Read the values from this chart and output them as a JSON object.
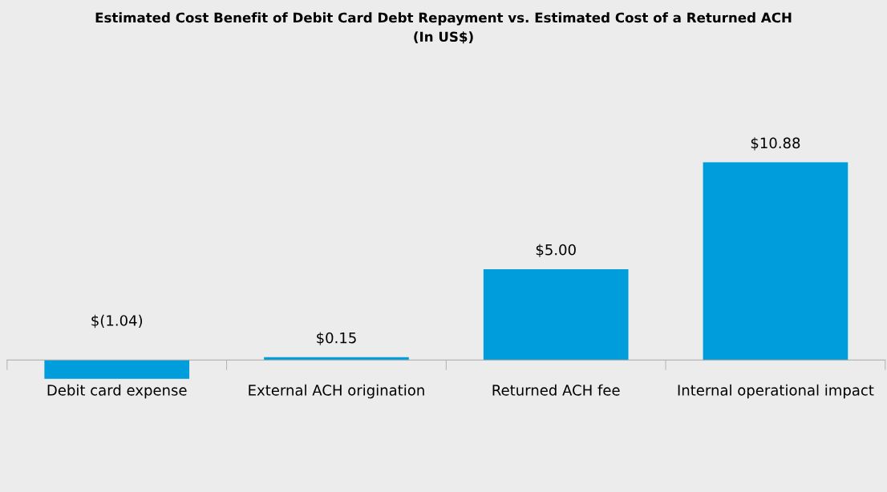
{
  "chart_data": {
    "type": "bar",
    "title": "Estimated Cost Benefit of Debit Card Debt Repayment vs. Estimated Cost of a Returned ACH\n(In US$)",
    "categories": [
      "Debit card expense",
      "External ACH origination",
      "Returned ACH fee",
      "Internal operational impact"
    ],
    "values": [
      -1.04,
      0.15,
      5.0,
      10.88
    ],
    "value_labels": [
      "$(1.04)",
      "$0.15",
      "$5.00",
      "$10.88"
    ],
    "color": "#009ddc"
  }
}
